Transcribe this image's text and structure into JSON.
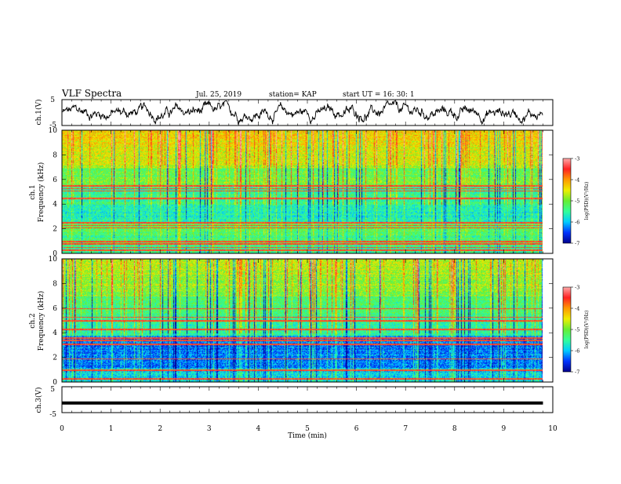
{
  "header": {
    "title": "VLF Spectra",
    "date": "Jul. 25, 2019",
    "station": "station= KAP",
    "start": "start UT = 16: 30: 1"
  },
  "chart_data": [
    {
      "type": "line",
      "name": "ch1-waveform",
      "ylabel": "ch.1(V)",
      "ylim": [
        -5,
        5
      ],
      "yticks": [
        "5",
        "-5"
      ],
      "xlim": [
        0,
        10
      ],
      "signal": "noisy waveform, amplitude roughly -4 to 4 V, data from 0 to 9.8 min"
    },
    {
      "type": "heatmap",
      "name": "ch1-spectrogram",
      "ylabel": "ch.1\nFrequency (kHz)",
      "ylim": [
        0,
        10
      ],
      "yticks": [
        "0",
        "2",
        "4",
        "6",
        "8",
        "10"
      ],
      "xlim": [
        0,
        10
      ],
      "data_xmax": 9.8,
      "colorbar": {
        "label": "log(PSD)(V²/Hz)",
        "range": [
          -7,
          -3
        ],
        "ticks": [
          "-3",
          "-4",
          "-5",
          "-6",
          "-7"
        ]
      },
      "bands_khz": [
        0.3,
        0.5,
        0.8,
        1.0,
        2.1,
        2.3,
        2.5,
        4.5,
        5.1,
        5.3,
        5.5
      ]
    },
    {
      "type": "heatmap",
      "name": "ch2-spectrogram",
      "ylabel": "ch.2\nFrequency (kHz)",
      "ylim": [
        0,
        10
      ],
      "yticks": [
        "0",
        "2",
        "4",
        "6",
        "8",
        "10"
      ],
      "xlim": [
        0,
        10
      ],
      "data_xmax": 9.8,
      "colorbar": {
        "label": "log(PSD)(V²/Hz)",
        "range": [
          -7,
          -3
        ],
        "ticks": [
          "-3",
          "-4",
          "-5",
          "-6",
          "-7"
        ]
      },
      "bands_khz": [
        0.3,
        1.0,
        1.9,
        3.1,
        3.4,
        3.6,
        4.3,
        5.0,
        5.3,
        6.0
      ]
    },
    {
      "type": "line",
      "name": "ch3-waveform",
      "ylabel": "ch.3(V)",
      "ylim": [
        -5,
        5
      ],
      "yticks": [
        "5",
        "-5"
      ],
      "xlim": [
        0,
        10
      ],
      "constant_value": -1.3,
      "xlabel": "Time (min)",
      "xticks": [
        "0",
        "1",
        "2",
        "3",
        "4",
        "5",
        "6",
        "7",
        "8",
        "9",
        "10"
      ]
    }
  ],
  "colors": {
    "cmap": [
      "#00008c",
      "#0033ff",
      "#00ccff",
      "#33ff99",
      "#66ee33",
      "#eeee00",
      "#ff9900",
      "#ff2222",
      "#ffaaaa"
    ]
  }
}
